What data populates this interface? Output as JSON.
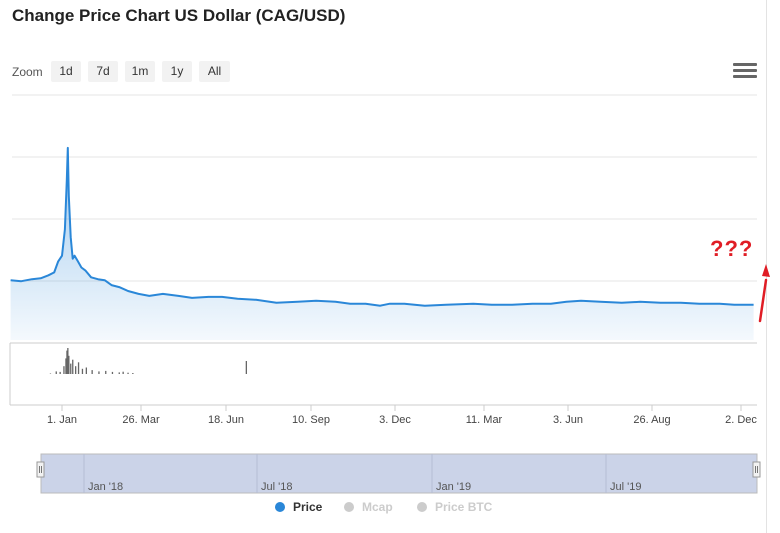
{
  "title": "Change Price Chart US Dollar (CAG/USD)",
  "zoom": {
    "label": "Zoom",
    "buttons": [
      "1d",
      "7d",
      "1m",
      "1y",
      "All"
    ]
  },
  "annotation": "???",
  "colors": {
    "price": "#2a87d8",
    "volume": "#666666",
    "navigator_fill": "#cbd3e8",
    "annotation": "#e01d25",
    "disabled": "#cccccc"
  },
  "legend": [
    {
      "label": "Price",
      "active": true
    },
    {
      "label": "Mcap",
      "active": false
    },
    {
      "label": "Price BTC",
      "active": false
    }
  ],
  "chart_data": {
    "type": "area",
    "x_ticks": [
      "1. Jan",
      "26. Mar",
      "18. Jun",
      "10. Sep",
      "3. Dec",
      "11. Mar",
      "3. Jun",
      "26. Aug",
      "2. Dec"
    ],
    "navigator_ticks": [
      "Jan '18",
      "Jul '18",
      "Jan '19",
      "Jul '19"
    ],
    "grid": true,
    "y_tick_labels_visible": false,
    "series": [
      {
        "name": "Price",
        "x": [
          "2017-11-09",
          "2017-11-20",
          "2017-12-01",
          "2017-12-10",
          "2017-12-18",
          "2017-12-24",
          "2017-12-28",
          "2018-01-01",
          "2018-01-04",
          "2018-01-06",
          "2018-01-07",
          "2018-01-08",
          "2018-01-10",
          "2018-01-12",
          "2018-01-14",
          "2018-01-17",
          "2018-01-21",
          "2018-01-25",
          "2018-01-31",
          "2018-02-07",
          "2018-02-14",
          "2018-02-21",
          "2018-03-01",
          "2018-03-10",
          "2018-03-21",
          "2018-04-01",
          "2018-04-15",
          "2018-05-01",
          "2018-05-15",
          "2018-06-01",
          "2018-06-15",
          "2018-07-01",
          "2018-07-20",
          "2018-08-10",
          "2018-09-01",
          "2018-09-20",
          "2018-10-10",
          "2018-10-25",
          "2018-11-10",
          "2018-11-25",
          "2018-12-05",
          "2018-12-20",
          "2019-01-10",
          "2019-02-01",
          "2019-03-01",
          "2019-03-20",
          "2019-04-10",
          "2019-05-01",
          "2019-05-20",
          "2019-06-05",
          "2019-06-20",
          "2019-07-10",
          "2019-08-01",
          "2019-08-20",
          "2019-09-10",
          "2019-10-01",
          "2019-10-20",
          "2019-11-10",
          "2019-11-25",
          "2019-12-05",
          "2019-12-15"
        ],
        "values": [
          0.61,
          0.6,
          0.62,
          0.63,
          0.66,
          0.69,
          0.8,
          0.86,
          1.13,
          1.63,
          1.96,
          1.47,
          1.05,
          0.83,
          0.86,
          0.81,
          0.74,
          0.71,
          0.64,
          0.62,
          0.61,
          0.56,
          0.54,
          0.5,
          0.47,
          0.45,
          0.47,
          0.45,
          0.43,
          0.44,
          0.44,
          0.42,
          0.41,
          0.38,
          0.39,
          0.4,
          0.39,
          0.37,
          0.37,
          0.35,
          0.37,
          0.37,
          0.35,
          0.36,
          0.37,
          0.36,
          0.36,
          0.37,
          0.37,
          0.39,
          0.4,
          0.39,
          0.38,
          0.39,
          0.38,
          0.38,
          0.37,
          0.37,
          0.36,
          0.36,
          0.36
        ]
      },
      {
        "name": "Volume",
        "x": [
          "2017-12-20",
          "2017-12-26",
          "2017-12-30",
          "2018-01-03",
          "2018-01-05",
          "2018-01-06",
          "2018-01-07",
          "2018-01-08",
          "2018-01-10",
          "2018-01-12",
          "2018-01-15",
          "2018-01-18",
          "2018-01-22",
          "2018-01-26",
          "2018-02-01",
          "2018-02-08",
          "2018-02-15",
          "2018-02-22",
          "2018-03-01",
          "2018-03-05",
          "2018-03-10",
          "2018-03-15",
          "2018-07-10"
        ],
        "values": [
          2,
          10,
          8,
          30,
          60,
          90,
          100,
          70,
          40,
          55,
          30,
          45,
          20,
          25,
          15,
          10,
          12,
          8,
          6,
          9,
          5,
          4,
          50
        ]
      }
    ],
    "y_range": [
      0,
      2.5
    ]
  }
}
